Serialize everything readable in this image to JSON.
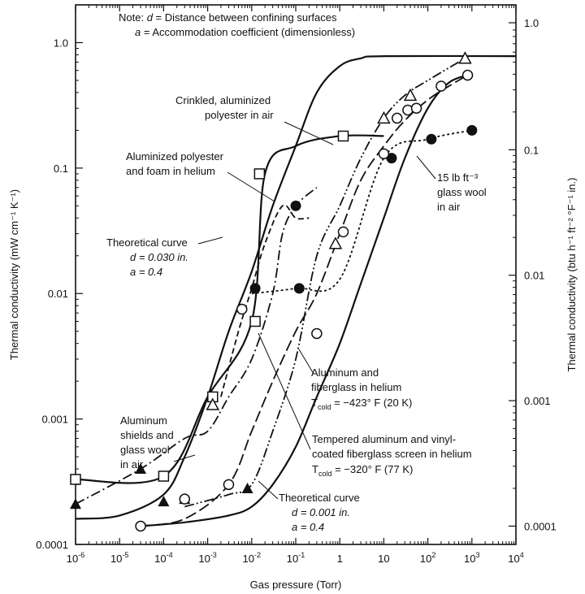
{
  "chart_data": {
    "type": "line",
    "xlabel": "Gas pressure (Torr)",
    "ylabel_left": "Thermal conductivity (mW cm⁻¹ K⁻¹)",
    "ylabel_right": "Thermal conductivity (btu h⁻¹ ft⁻² °F⁻¹ in.)",
    "x_scale": "log",
    "y_scale": "log",
    "xlim": [
      1e-06,
      10000
    ],
    "ylim": [
      0.0001,
      2
    ],
    "x_ticks": [
      {
        "value": 1e-06,
        "base": "10",
        "exp": "-6"
      },
      {
        "value": 1e-05,
        "base": "10",
        "exp": "-5"
      },
      {
        "value": 0.0001,
        "base": "10",
        "exp": "-4"
      },
      {
        "value": 0.001,
        "base": "10",
        "exp": "-3"
      },
      {
        "value": 0.01,
        "base": "10",
        "exp": "-2"
      },
      {
        "value": 0.1,
        "base": "10",
        "exp": "-1"
      },
      {
        "value": 1,
        "base": "1",
        "exp": ""
      },
      {
        "value": 10,
        "base": "10",
        "exp": ""
      },
      {
        "value": 100,
        "base": "10",
        "exp": "2"
      },
      {
        "value": 1000,
        "base": "10",
        "exp": "3"
      },
      {
        "value": 10000,
        "base": "10",
        "exp": "4"
      }
    ],
    "y_ticks_left": [
      {
        "value": 0.0001,
        "label": "0.0001"
      },
      {
        "value": 0.001,
        "label": "0.001"
      },
      {
        "value": 0.01,
        "label": "0.01"
      },
      {
        "value": 0.1,
        "label": "0.1"
      },
      {
        "value": 1,
        "label": "1.0"
      }
    ],
    "y_ticks_right": [
      {
        "value": 0.00014,
        "label": "0.0001"
      },
      {
        "value": 0.0014,
        "label": "0.001"
      },
      {
        "value": 0.014,
        "label": "0.01"
      },
      {
        "value": 0.14,
        "label": "0.1"
      },
      {
        "value": 1.44,
        "label": "1.0"
      }
    ],
    "note": {
      "line1": [
        "Note: ",
        "d",
        " = Distance between confining surfaces"
      ],
      "line2": [
        "a",
        " = Accommodation coefficient (dimensionless)"
      ]
    },
    "series": [
      {
        "label_lines": [
          "Theoretical curve",
          "d = 0.030 in.",
          "a = 0.4"
        ],
        "style": "solid",
        "marker": "none",
        "points": [
          [
            1e-06,
            0.00016
          ],
          [
            1e-05,
            0.00017
          ],
          [
            0.0001,
            0.00025
          ],
          [
            0.0003,
            0.0005
          ],
          [
            0.001,
            0.0015
          ],
          [
            0.003,
            0.005
          ],
          [
            0.01,
            0.015
          ],
          [
            0.03,
            0.05
          ],
          [
            0.1,
            0.15
          ],
          [
            0.3,
            0.4
          ],
          [
            1,
            0.65
          ],
          [
            3,
            0.75
          ],
          [
            10,
            0.78
          ],
          [
            10000,
            0.78
          ]
        ]
      },
      {
        "label_lines": [
          "Theoretical curve",
          "d = 0.001 in.",
          "a = 0.4"
        ],
        "style": "solid",
        "marker": "none",
        "points": [
          [
            3e-05,
            0.00014
          ],
          [
            0.0003,
            0.00015
          ],
          [
            0.003,
            0.00017
          ],
          [
            0.01,
            0.0002
          ],
          [
            0.03,
            0.0003
          ],
          [
            0.1,
            0.0006
          ],
          [
            0.3,
            0.0015
          ],
          [
            1,
            0.004
          ],
          [
            3,
            0.012
          ],
          [
            10,
            0.04
          ],
          [
            30,
            0.12
          ],
          [
            100,
            0.3
          ],
          [
            300,
            0.48
          ],
          [
            1000,
            0.56
          ]
        ]
      },
      {
        "label_lines": [
          "Crinkled, aluminized",
          "polyester in air"
        ],
        "style": "solid",
        "marker": "open-square",
        "points": [
          [
            1e-06,
            0.00033
          ],
          [
            0.0001,
            0.00035
          ],
          [
            0.001,
            0.0015
          ],
          [
            0.01,
            0.006
          ],
          [
            0.02,
            0.09
          ],
          [
            0.1,
            0.15
          ],
          [
            1,
            0.18
          ],
          [
            10,
            0.18
          ]
        ]
      },
      {
        "label_lines": [
          "Aluminized polyester",
          "and foam in helium"
        ],
        "style": "dashed",
        "marker": "filled-circle",
        "points": [
          [
            0.002,
            0.0015
          ],
          [
            0.005,
            0.005
          ],
          [
            0.01,
            0.011
          ],
          [
            0.02,
            0.025
          ],
          [
            0.05,
            0.05
          ],
          [
            0.1,
            0.04
          ],
          [
            0.2,
            0.04
          ]
        ]
      },
      {
        "label_lines": [
          "Aluminum",
          "shields and",
          "glass wool",
          "in air"
        ],
        "style": "dash-dot",
        "marker": "filled-triangle",
        "points": [
          [
            1e-06,
            0.00021
          ],
          [
            3e-05,
            0.0004
          ],
          [
            0.0003,
            0.0007
          ],
          [
            0.001,
            0.0008
          ],
          [
            0.003,
            0.0015
          ],
          [
            0.01,
            0.003
          ],
          [
            0.03,
            0.01
          ],
          [
            0.05,
            0.03
          ],
          [
            0.1,
            0.05
          ],
          [
            0.3,
            0.07
          ]
        ]
      },
      {
        "label_lines": [
          "Aluminum and",
          "fiberglass in helium"
        ],
        "label_sub": [
          "T",
          "cold",
          " = −423° F (20 K)"
        ],
        "style": "long-dashed",
        "marker": "open-circle",
        "points": [
          [
            3e-05,
            0.00014
          ],
          [
            0.0003,
            0.00016
          ],
          [
            0.003,
            0.0003
          ],
          [
            0.01,
            0.0008
          ],
          [
            0.03,
            0.002
          ],
          [
            0.1,
            0.005
          ],
          [
            0.3,
            0.01
          ],
          [
            1,
            0.03
          ],
          [
            3,
            0.08
          ],
          [
            10,
            0.15
          ],
          [
            30,
            0.24
          ],
          [
            100,
            0.35
          ],
          [
            300,
            0.45
          ],
          [
            800,
            0.55
          ]
        ]
      },
      {
        "label_lines": [
          "Tempered aluminum and vinyl-",
          "coated fiberglass screen in helium"
        ],
        "label_sub": [
          "T",
          "cold",
          " = −320° F (77 K)"
        ],
        "style": "dash-dot-dot",
        "marker": "open-triangle",
        "points": [
          [
            0.0003,
            0.0002
          ],
          [
            0.003,
            0.00025
          ],
          [
            0.01,
            0.0003
          ],
          [
            0.03,
            0.0008
          ],
          [
            0.1,
            0.003
          ],
          [
            0.3,
            0.02
          ],
          [
            1,
            0.05
          ],
          [
            3,
            0.12
          ],
          [
            10,
            0.25
          ],
          [
            30,
            0.38
          ],
          [
            100,
            0.5
          ],
          [
            700,
            0.75
          ]
        ]
      },
      {
        "label_lines": [
          "15 lb ft⁻³",
          "glass wool",
          "in air"
        ],
        "style": "dotted",
        "marker": "filled-circle",
        "points": [
          [
            0.01,
            0.01
          ],
          [
            0.1,
            0.011
          ],
          [
            1,
            0.013
          ],
          [
            10,
            0.12
          ],
          [
            100,
            0.17
          ],
          [
            1000,
            0.2
          ]
        ]
      }
    ],
    "markers": [
      {
        "type": "open-square",
        "x": 1e-06,
        "y": 0.00033
      },
      {
        "type": "open-square",
        "x": 0.0001,
        "y": 0.00035
      },
      {
        "type": "open-square",
        "x": 0.0013,
        "y": 0.0015
      },
      {
        "type": "open-square",
        "x": 0.012,
        "y": 0.006
      },
      {
        "type": "open-square",
        "x": 0.015,
        "y": 0.09
      },
      {
        "type": "open-square",
        "x": 1.2,
        "y": 0.18
      },
      {
        "type": "filled-circle",
        "x": 0.012,
        "y": 0.011
      },
      {
        "type": "filled-circle",
        "x": 0.1,
        "y": 0.05
      },
      {
        "type": "filled-circle",
        "x": 0.12,
        "y": 0.011
      },
      {
        "type": "filled-circle",
        "x": 15,
        "y": 0.12
      },
      {
        "type": "filled-circle",
        "x": 120,
        "y": 0.17
      },
      {
        "type": "filled-circle",
        "x": 1000,
        "y": 0.2
      },
      {
        "type": "filled-triangle",
        "x": 1e-06,
        "y": 0.00021
      },
      {
        "type": "filled-triangle",
        "x": 3e-05,
        "y": 0.0004
      },
      {
        "type": "filled-triangle",
        "x": 0.0001,
        "y": 0.00022
      },
      {
        "type": "filled-triangle",
        "x": 0.0003,
        "y": 0.00023
      },
      {
        "type": "filled-triangle",
        "x": 0.008,
        "y": 0.00028
      },
      {
        "type": "open-circle",
        "x": 3e-05,
        "y": 0.00014
      },
      {
        "type": "open-circle",
        "x": 0.0003,
        "y": 0.00023
      },
      {
        "type": "open-circle",
        "x": 0.003,
        "y": 0.0003
      },
      {
        "type": "open-circle",
        "x": 0.006,
        "y": 0.0075
      },
      {
        "type": "open-circle",
        "x": 0.3,
        "y": 0.0048
      },
      {
        "type": "open-circle",
        "x": 1.2,
        "y": 0.031
      },
      {
        "type": "open-circle",
        "x": 10,
        "y": 0.13
      },
      {
        "type": "open-circle",
        "x": 20,
        "y": 0.25
      },
      {
        "type": "open-circle",
        "x": 35,
        "y": 0.29
      },
      {
        "type": "open-circle",
        "x": 55,
        "y": 0.3
      },
      {
        "type": "open-circle",
        "x": 200,
        "y": 0.45
      },
      {
        "type": "open-circle",
        "x": 800,
        "y": 0.55
      },
      {
        "type": "open-triangle",
        "x": 0.0013,
        "y": 0.0013
      },
      {
        "type": "open-triangle",
        "x": 0.8,
        "y": 0.025
      },
      {
        "type": "open-triangle",
        "x": 10,
        "y": 0.25
      },
      {
        "type": "open-triangle",
        "x": 40,
        "y": 0.38
      },
      {
        "type": "open-triangle",
        "x": 700,
        "y": 0.75
      }
    ]
  }
}
